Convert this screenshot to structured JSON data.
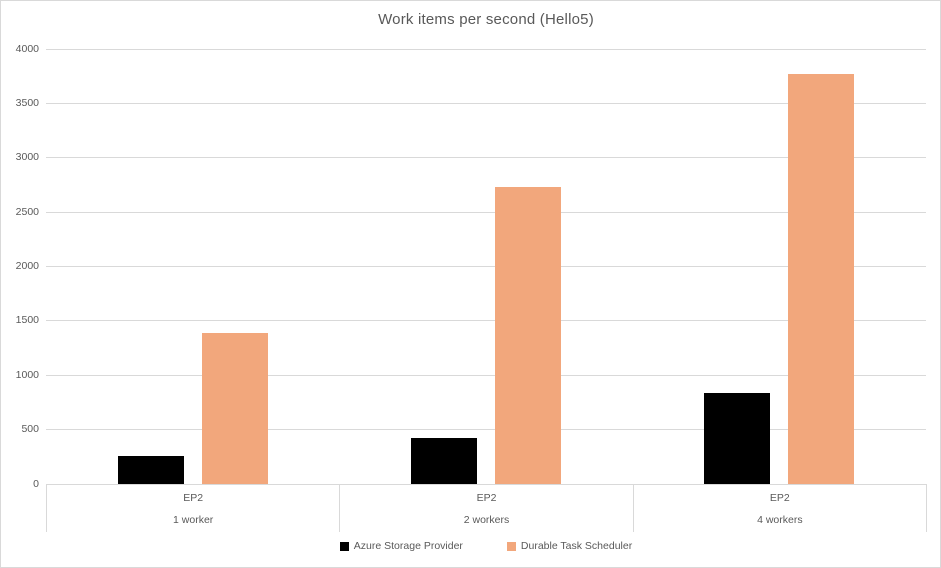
{
  "chart_data": {
    "type": "bar",
    "title": "Work items per second (Hello5)",
    "categories": [
      {
        "label": "EP2",
        "sublabel": "1 worker"
      },
      {
        "label": "EP2",
        "sublabel": "2 workers"
      },
      {
        "label": "EP2",
        "sublabel": "4 workers"
      }
    ],
    "series": [
      {
        "name": "Azure Storage Provider",
        "color": "#000000",
        "values": [
          260,
          420,
          840
        ]
      },
      {
        "name": "Durable Task Scheduler",
        "color": "#F2A77C",
        "values": [
          1390,
          2730,
          3770
        ]
      }
    ],
    "xlabel": "",
    "ylabel": "",
    "ylim": [
      0,
      4000
    ],
    "ytick_interval": 500,
    "yticks": [
      0,
      500,
      1000,
      1500,
      2000,
      2500,
      3000,
      3500,
      4000
    ],
    "grid": true,
    "legend_position": "bottom",
    "colors": {
      "gridline": "#d9d9d9",
      "axis_line": "#d9d9d9",
      "text": "#595959",
      "chart_border": "#d9d9d9",
      "background": "#ffffff"
    }
  }
}
